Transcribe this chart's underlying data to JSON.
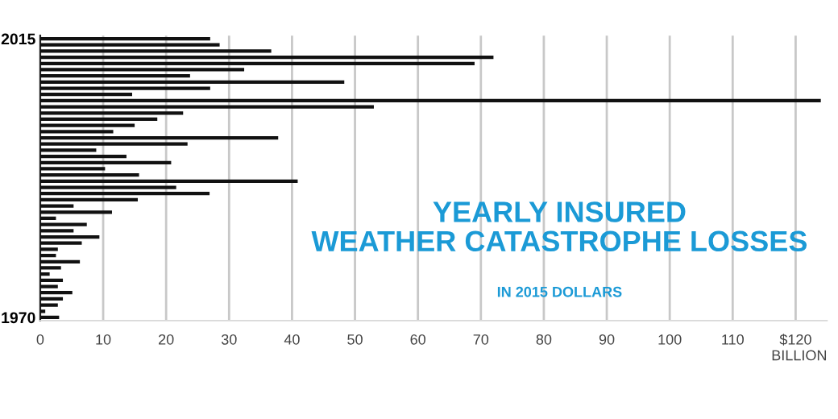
{
  "chart_data": {
    "type": "bar",
    "orientation": "horizontal",
    "title": "YEARLY INSURED\nWEATHER CATASTROPHE LOSSES",
    "subtitle": "IN 2015 DOLLARS",
    "xlabel": "BILLION",
    "categories": [
      "2015",
      null,
      null,
      null,
      null,
      null,
      null,
      null,
      null,
      null,
      null,
      null,
      null,
      null,
      null,
      null,
      null,
      null,
      null,
      null,
      null,
      null,
      null,
      null,
      null,
      null,
      null,
      null,
      null,
      null,
      null,
      null,
      null,
      null,
      null,
      null,
      null,
      null,
      null,
      null,
      null,
      null,
      null,
      null,
      null,
      "1970"
    ],
    "values": [
      27,
      28.5,
      36.7,
      72,
      69,
      32.4,
      23.8,
      48.3,
      27,
      14.6,
      124,
      53,
      22.7,
      18.6,
      15,
      11.6,
      37.8,
      23.4,
      8.9,
      13.7,
      20.8,
      10.3,
      15.7,
      40.9,
      21.6,
      26.9,
      15.5,
      5.3,
      11.4,
      2.5,
      7.4,
      5.3,
      9.4,
      6.6,
      2.8,
      2.5,
      6.3,
      3.3,
      1.5,
      3.6,
      2.8,
      5.1,
      3.6,
      2.8,
      0.8,
      3
    ],
    "color": "#111111",
    "xlim": [
      0,
      125
    ],
    "xticks": [
      0,
      10,
      20,
      30,
      40,
      50,
      60,
      70,
      80,
      90,
      100,
      110,
      {
        "value": 120,
        "label": "$120"
      }
    ],
    "grid": "x",
    "legend": false
  }
}
